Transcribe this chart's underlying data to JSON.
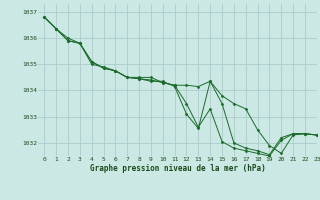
{
  "title": "Graphe pression niveau de la mer (hPa)",
  "background_color": "#cce8e4",
  "grid_color": "#aacccc",
  "line_color": "#1a6b2a",
  "marker_color": "#1a6b2a",
  "xlim": [
    -0.5,
    23
  ],
  "ylim": [
    1031.5,
    1037.3
  ],
  "yticks": [
    1032,
    1033,
    1034,
    1035,
    1036,
    1037
  ],
  "xticks": [
    0,
    1,
    2,
    3,
    4,
    5,
    6,
    7,
    8,
    9,
    10,
    11,
    12,
    13,
    14,
    15,
    16,
    17,
    18,
    19,
    20,
    21,
    22,
    23
  ],
  "series": [
    [
      1036.8,
      1036.35,
      1035.9,
      1035.8,
      1035.1,
      1034.85,
      1034.75,
      1034.5,
      1034.45,
      1034.4,
      1034.3,
      1034.2,
      1034.2,
      1034.15,
      1034.35,
      1033.8,
      1033.5,
      1033.3,
      1032.5,
      1031.9,
      1031.6,
      1032.3,
      1032.35,
      1032.3
    ],
    [
      1036.8,
      1036.35,
      1036.0,
      1035.8,
      1035.0,
      1034.9,
      1034.75,
      1034.5,
      1034.45,
      1034.35,
      1034.35,
      1034.15,
      1033.1,
      1032.55,
      1034.35,
      1033.5,
      1032.0,
      1031.8,
      1031.7,
      1031.55,
      1032.2,
      1032.35,
      1032.35,
      1032.3
    ],
    [
      1036.8,
      1036.35,
      1035.9,
      1035.8,
      1035.1,
      1034.85,
      1034.75,
      1034.5,
      1034.5,
      1034.5,
      1034.3,
      1034.2,
      1033.5,
      1032.6,
      1033.3,
      1032.05,
      1031.8,
      1031.7,
      1031.6,
      1031.5,
      1032.1,
      1032.35,
      1032.35,
      1032.3
    ]
  ]
}
